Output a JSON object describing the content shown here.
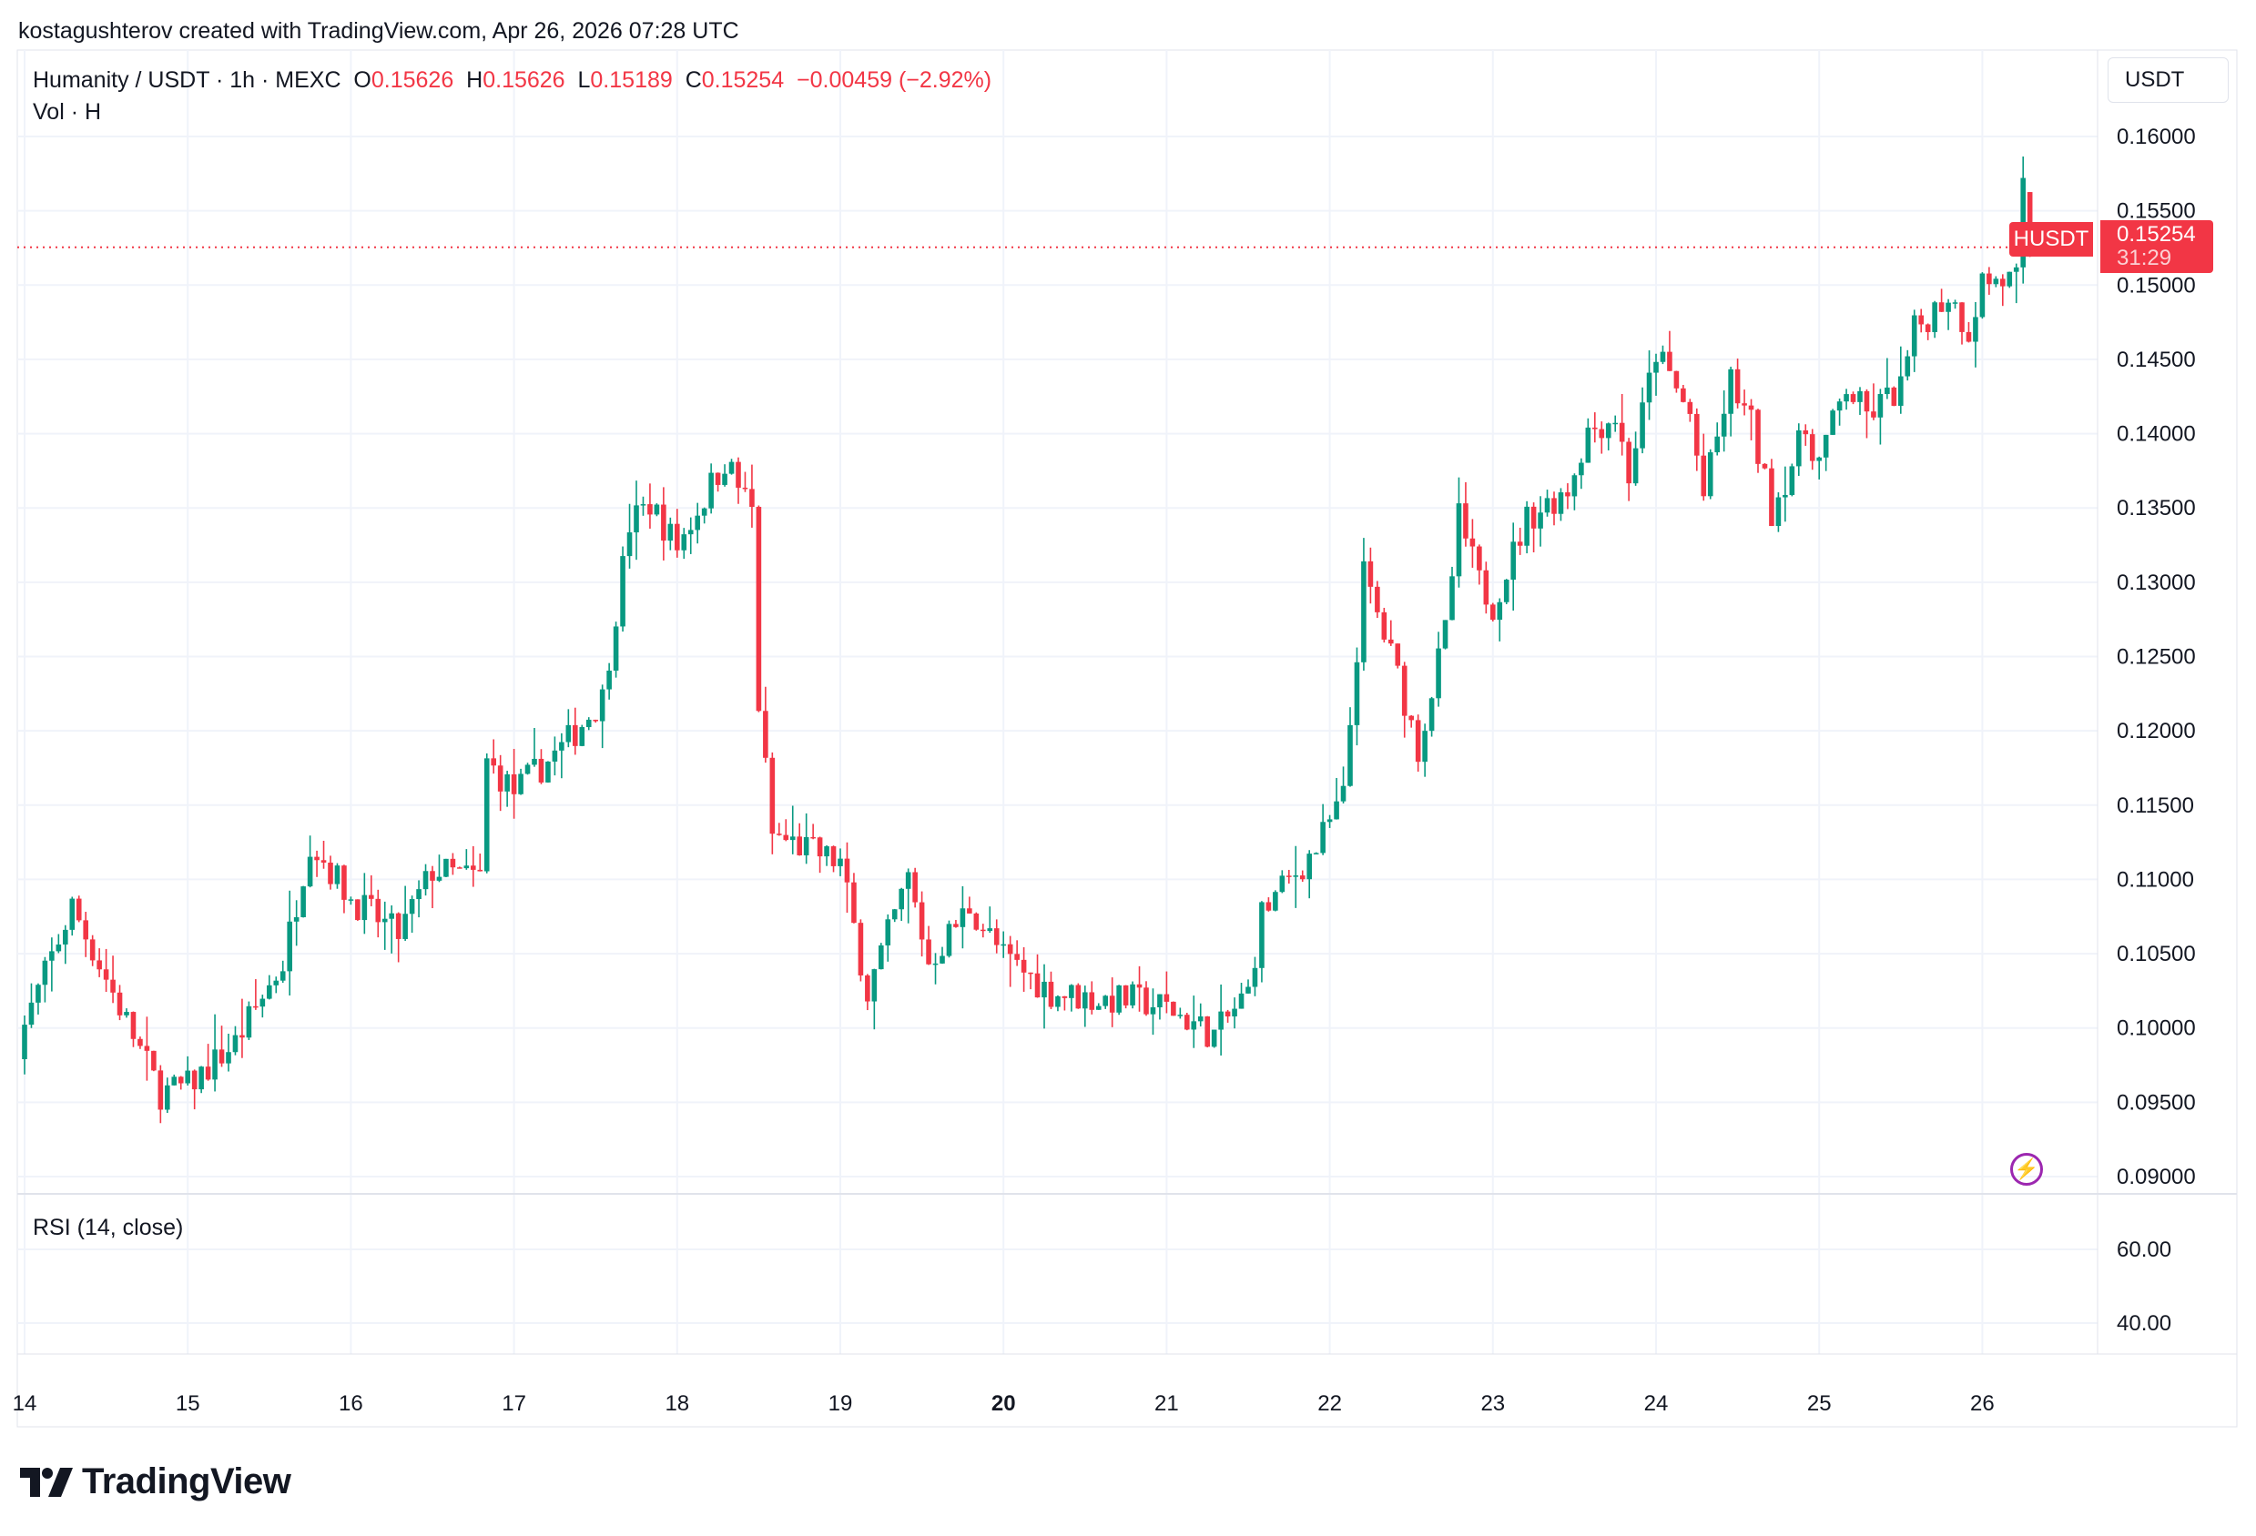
{
  "credit": "kostagushterov created with TradingView.com, Apr 26, 2026 07:28 UTC",
  "legend": {
    "symbol": "Humanity / USDT · 1h · MEXC",
    "o_label": "O",
    "o": "0.15626",
    "h_label": "H",
    "h": "0.15626",
    "l_label": "L",
    "l": "0.15189",
    "c_label": "C",
    "c": "0.15254",
    "change": "−0.00459 (−2.92%)",
    "volume": "Vol · H"
  },
  "currency_button": "USDT",
  "symbol_tag": "HUSDT",
  "last_price": "0.15254",
  "countdown": "31:29",
  "rsi_label": "RSI (14, close)",
  "logo_text": "TradingView",
  "colors": {
    "up": "#089981",
    "down": "#f23645",
    "grid": "#f0f3fa",
    "accent": "#9c27b0"
  },
  "icons": [
    "lightning-icon",
    "tradingview-logo-icon"
  ],
  "chart_data": {
    "type": "candlestick",
    "timeframe": "1h",
    "x_ticks": [
      "14",
      "15",
      "16",
      "17",
      "18",
      "19",
      "20",
      "21",
      "22",
      "23",
      "24",
      "25",
      "26"
    ],
    "x_tick_bold": "20",
    "y_ticks": [
      "0.16000",
      "0.15500",
      "0.15000",
      "0.14500",
      "0.14000",
      "0.13500",
      "0.13000",
      "0.12500",
      "0.12000",
      "0.11500",
      "0.11000",
      "0.10500",
      "0.10000",
      "0.09500",
      "0.09000"
    ],
    "ylim": [
      0.09,
      0.16
    ],
    "rsi_ticks": [
      "60.00",
      "40.00"
    ],
    "approx_close_path_hours_from_apr14": [
      [
        -1,
        0.099
      ],
      [
        7,
        0.1082
      ],
      [
        14,
        0.1014
      ],
      [
        20,
        0.0956
      ],
      [
        24,
        0.0961
      ],
      [
        31,
        0.099
      ],
      [
        38,
        0.1044
      ],
      [
        42,
        0.1126
      ],
      [
        48,
        0.1087
      ],
      [
        55,
        0.1063
      ],
      [
        60,
        0.1106
      ],
      [
        67,
        0.1101
      ],
      [
        68,
        0.1179
      ],
      [
        72,
        0.1159
      ],
      [
        79,
        0.1188
      ],
      [
        85,
        0.1222
      ],
      [
        89,
        0.1339
      ],
      [
        92,
        0.1353
      ],
      [
        96,
        0.1324
      ],
      [
        103,
        0.1382
      ],
      [
        107,
        0.1348
      ],
      [
        108,
        0.1218
      ],
      [
        110,
        0.113
      ],
      [
        120,
        0.1111
      ],
      [
        124,
        0.1024
      ],
      [
        130,
        0.1101
      ],
      [
        133,
        0.1044
      ],
      [
        139,
        0.1082
      ],
      [
        144,
        0.1048
      ],
      [
        151,
        0.1024
      ],
      [
        158,
        0.1019
      ],
      [
        163,
        0.1019
      ],
      [
        168,
        0.1014
      ],
      [
        175,
        0.0995
      ],
      [
        180,
        0.1024
      ],
      [
        182,
        0.1077
      ],
      [
        190,
        0.1121
      ],
      [
        194,
        0.1155
      ],
      [
        197,
        0.1305
      ],
      [
        202,
        0.1237
      ],
      [
        205,
        0.1188
      ],
      [
        209,
        0.1266
      ],
      [
        211,
        0.1343
      ],
      [
        214,
        0.13
      ],
      [
        216,
        0.1285
      ],
      [
        221,
        0.1343
      ],
      [
        227,
        0.1363
      ],
      [
        230,
        0.1402
      ],
      [
        234,
        0.1412
      ],
      [
        236,
        0.1372
      ],
      [
        240,
        0.1455
      ],
      [
        245,
        0.1412
      ],
      [
        247,
        0.1358
      ],
      [
        251,
        0.1435
      ],
      [
        254,
        0.1406
      ],
      [
        257,
        0.1348
      ],
      [
        262,
        0.1402
      ],
      [
        264,
        0.1382
      ],
      [
        268,
        0.1431
      ],
      [
        271,
        0.1412
      ],
      [
        276,
        0.1431
      ],
      [
        278,
        0.1469
      ],
      [
        283,
        0.1494
      ],
      [
        286,
        0.1469
      ],
      [
        288,
        0.1503
      ],
      [
        293,
        0.1503
      ],
      [
        294,
        0.1562
      ]
    ],
    "last_candle": {
      "hour": 295,
      "open": 0.15626,
      "high": 0.15626,
      "low": 0.15189,
      "close": 0.15254
    }
  }
}
